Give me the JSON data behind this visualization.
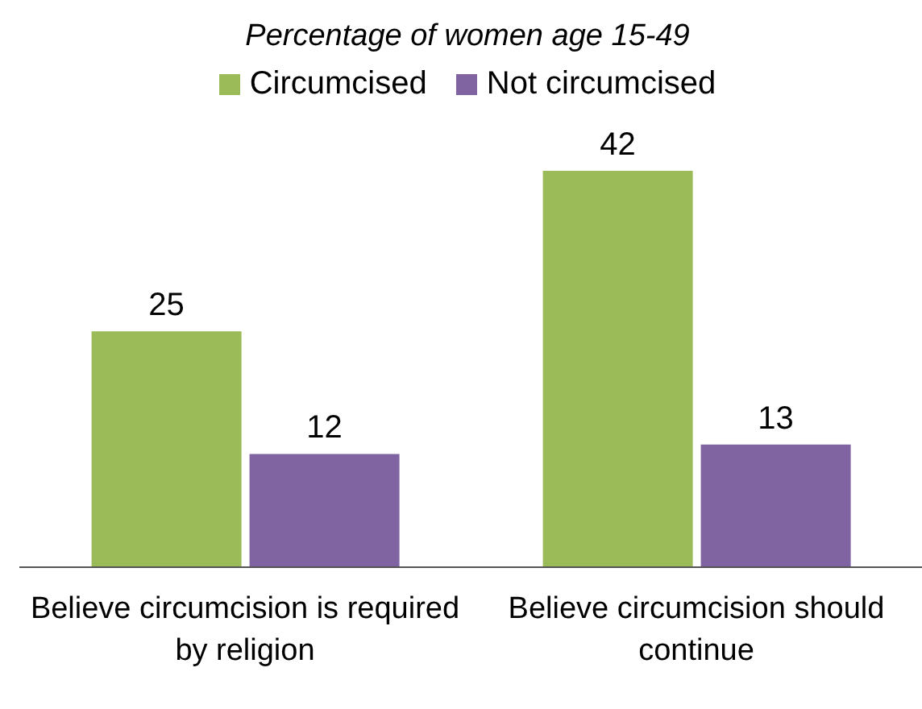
{
  "chart_data": {
    "type": "bar",
    "title": "Percentage of women age 15-49",
    "categories": [
      "Believe circumcision is required by religion",
      "Believe circumcision should continue"
    ],
    "series": [
      {
        "name": "Circumcised",
        "color": "#9bbb59",
        "values": [
          25,
          42
        ]
      },
      {
        "name": "Not circumcised",
        "color": "#8064a2",
        "values": [
          12,
          13
        ]
      }
    ],
    "data_labels": true,
    "legend": "top",
    "grid": false
  }
}
